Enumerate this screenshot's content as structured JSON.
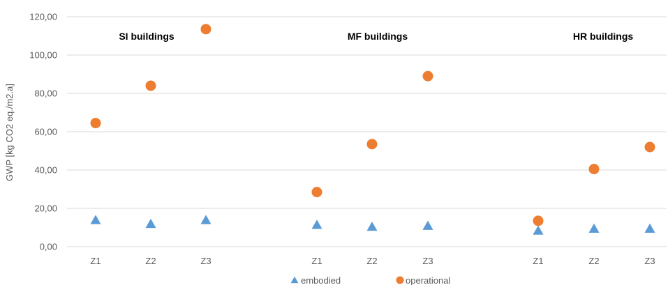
{
  "chart_data": {
    "type": "scatter",
    "title": "",
    "ylabel": "GWP [kg CO2 eq./m2.a]",
    "xlabel": "",
    "ylim": [
      0,
      120
    ],
    "y_ticks": [
      "0,00",
      "20,00",
      "40,00",
      "60,00",
      "80,00",
      "100,00",
      "120,00"
    ],
    "grid": true,
    "legend_position": "bottom",
    "groups": [
      {
        "label": "SI buildings",
        "categories": [
          "Z1",
          "Z2",
          "Z3"
        ]
      },
      {
        "label": "MF buildings",
        "categories": [
          "Z1",
          "Z2",
          "Z3"
        ]
      },
      {
        "label": "HR buildings",
        "categories": [
          "Z1",
          "Z2",
          "Z3"
        ]
      }
    ],
    "series": [
      {
        "name": "embodied",
        "marker": "triangle",
        "color": "#5b9bd5",
        "values": [
          14.0,
          12.0,
          14.0,
          11.5,
          10.5,
          11.0,
          8.5,
          9.5,
          9.5
        ]
      },
      {
        "name": "operational",
        "marker": "circle",
        "color": "#ed7d31",
        "values": [
          64.5,
          84.0,
          113.5,
          28.5,
          53.5,
          89.0,
          13.5,
          40.5,
          52.0
        ]
      }
    ]
  }
}
